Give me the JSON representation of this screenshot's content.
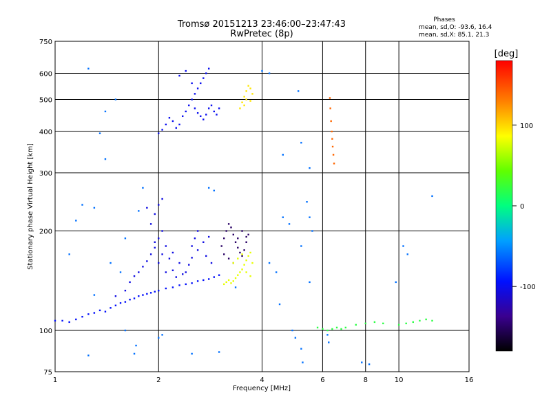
{
  "chart_data": {
    "type": "scatter",
    "title": "Tromsø 20151213 23:46:00–23:47:43",
    "subtitle": "RwPretec (8p)",
    "xlabel": "Frequency [MHz]",
    "ylabel": "Stationary phase Virtual Height [km]",
    "x_scale": "log",
    "y_scale": "log",
    "xlim": [
      1,
      16
    ],
    "ylim": [
      75,
      750
    ],
    "x_ticks": [
      1,
      2,
      4,
      6,
      8,
      10,
      16
    ],
    "x_tick_labels": [
      "1",
      "2",
      "4",
      "6",
      "8",
      "10",
      "16"
    ],
    "y_ticks": [
      75,
      100,
      200,
      300,
      400,
      500,
      600,
      750
    ],
    "y_tick_labels": [
      "75",
      "100",
      "200",
      "300",
      "400",
      "500",
      "600",
      "750"
    ],
    "grid": true,
    "colorbar": {
      "label": "[deg]",
      "min": -180,
      "max": 180,
      "ticks": [
        100,
        0,
        -100
      ],
      "tick_labels": [
        "100",
        "0",
        "-100"
      ]
    },
    "legend": {
      "title": "Phases",
      "line_o": "mean, sd,O: -93.6, 16.4",
      "line_x": "mean, sd,X: 85.1, 21.3"
    },
    "color_value": "phase [deg]",
    "clusters": [
      {
        "points": [
          [
            1.0,
            107
          ],
          [
            1.05,
            107
          ],
          [
            1.1,
            106
          ],
          [
            1.15,
            108
          ],
          [
            1.2,
            110
          ],
          [
            1.25,
            112
          ],
          [
            1.3,
            113
          ],
          [
            1.35,
            115
          ],
          [
            1.4,
            114
          ],
          [
            1.45,
            117
          ],
          [
            1.5,
            119
          ],
          [
            1.55,
            121
          ],
          [
            1.6,
            122
          ],
          [
            1.65,
            124
          ],
          [
            1.7,
            125
          ],
          [
            1.75,
            127
          ],
          [
            1.8,
            128
          ],
          [
            1.85,
            129
          ],
          [
            1.9,
            130
          ],
          [
            1.95,
            131
          ],
          [
            2.0,
            132
          ],
          [
            2.1,
            134
          ],
          [
            2.2,
            135
          ],
          [
            2.3,
            137
          ],
          [
            2.4,
            138
          ],
          [
            2.5,
            139
          ],
          [
            2.6,
            141
          ],
          [
            2.7,
            142
          ],
          [
            2.8,
            143
          ],
          [
            2.9,
            145
          ],
          [
            3.0,
            147
          ]
        ],
        "phase": -95
      },
      {
        "points": [
          [
            1.5,
            127
          ],
          [
            1.6,
            132
          ],
          [
            1.65,
            140
          ],
          [
            1.7,
            146
          ],
          [
            1.75,
            150
          ],
          [
            1.8,
            156
          ],
          [
            1.85,
            162
          ],
          [
            1.9,
            170
          ],
          [
            1.95,
            178
          ],
          [
            2.0,
            190
          ],
          [
            2.05,
            200
          ],
          [
            2.1,
            180
          ],
          [
            2.15,
            165
          ],
          [
            2.2,
            152
          ],
          [
            2.25,
            145
          ],
          [
            1.9,
            210
          ],
          [
            1.95,
            225
          ],
          [
            2.0,
            240
          ],
          [
            2.05,
            250
          ],
          [
            1.85,
            235
          ],
          [
            2.0,
            160
          ],
          [
            2.1,
            150
          ],
          [
            2.05,
            170
          ],
          [
            1.95,
            185
          ],
          [
            2.2,
            172
          ],
          [
            2.3,
            160
          ],
          [
            2.4,
            150
          ],
          [
            2.5,
            166
          ],
          [
            2.6,
            175
          ],
          [
            2.7,
            185
          ],
          [
            2.8,
            192
          ],
          [
            2.5,
            180
          ],
          [
            2.55,
            190
          ],
          [
            2.6,
            200
          ],
          [
            2.45,
            158
          ],
          [
            2.35,
            148
          ],
          [
            2.75,
            168
          ],
          [
            2.85,
            160
          ]
        ],
        "phase": -105
      },
      {
        "points": [
          [
            2.0,
            395
          ],
          [
            2.05,
            405
          ],
          [
            2.1,
            420
          ],
          [
            2.15,
            440
          ],
          [
            2.2,
            430
          ],
          [
            2.25,
            410
          ],
          [
            2.3,
            420
          ],
          [
            2.35,
            445
          ],
          [
            2.4,
            460
          ],
          [
            2.45,
            480
          ],
          [
            2.5,
            500
          ],
          [
            2.55,
            520
          ],
          [
            2.6,
            540
          ],
          [
            2.65,
            560
          ],
          [
            2.7,
            580
          ],
          [
            2.75,
            600
          ],
          [
            2.8,
            620
          ],
          [
            2.3,
            590
          ],
          [
            2.4,
            610
          ],
          [
            2.5,
            560
          ],
          [
            2.55,
            470
          ],
          [
            2.6,
            455
          ],
          [
            2.65,
            445
          ],
          [
            2.7,
            435
          ],
          [
            2.75,
            450
          ],
          [
            2.8,
            470
          ],
          [
            2.85,
            480
          ],
          [
            2.9,
            460
          ],
          [
            2.95,
            450
          ],
          [
            3.0,
            470
          ]
        ],
        "phase": -100
      },
      {
        "points": [
          [
            3.05,
            180
          ],
          [
            3.1,
            190
          ],
          [
            3.15,
            200
          ],
          [
            3.2,
            210
          ],
          [
            3.25,
            205
          ],
          [
            3.3,
            195
          ],
          [
            3.35,
            185
          ],
          [
            3.4,
            178
          ],
          [
            3.45,
            172
          ],
          [
            3.5,
            168
          ],
          [
            3.55,
            175
          ],
          [
            3.6,
            185
          ],
          [
            3.65,
            195
          ],
          [
            3.1,
            170
          ],
          [
            3.2,
            165
          ],
          [
            3.3,
            160
          ],
          [
            3.4,
            190
          ],
          [
            3.5,
            200
          ],
          [
            3.6,
            192
          ]
        ],
        "phase": -150
      },
      {
        "points": [
          [
            3.1,
            138
          ],
          [
            3.15,
            140
          ],
          [
            3.2,
            142
          ],
          [
            3.25,
            139
          ],
          [
            3.3,
            141
          ],
          [
            3.35,
            144
          ],
          [
            3.4,
            147
          ],
          [
            3.45,
            150
          ],
          [
            3.5,
            153
          ],
          [
            3.55,
            158
          ],
          [
            3.6,
            163
          ],
          [
            3.65,
            168
          ],
          [
            3.7,
            172
          ],
          [
            3.75,
            160
          ],
          [
            3.4,
            165
          ],
          [
            3.5,
            170
          ],
          [
            3.3,
            160
          ],
          [
            3.6,
            150
          ],
          [
            3.7,
            146
          ]
        ],
        "phase": 80
      },
      {
        "points": [
          [
            3.45,
            470
          ],
          [
            3.5,
            490
          ],
          [
            3.55,
            510
          ],
          [
            3.6,
            530
          ],
          [
            3.65,
            550
          ],
          [
            3.7,
            540
          ],
          [
            3.75,
            520
          ],
          [
            3.6,
            500
          ],
          [
            3.55,
            480
          ],
          [
            3.7,
            495
          ]
        ],
        "phase": 95
      },
      {
        "points": [
          [
            6.3,
            505
          ],
          [
            6.32,
            470
          ],
          [
            6.35,
            430
          ],
          [
            6.38,
            400
          ],
          [
            6.4,
            380
          ],
          [
            6.42,
            360
          ],
          [
            6.45,
            340
          ],
          [
            6.48,
            320
          ]
        ],
        "phase": 140
      },
      {
        "points": [
          [
            5.8,
            102
          ],
          [
            6.0,
            101
          ],
          [
            6.2,
            100
          ],
          [
            6.4,
            101
          ],
          [
            6.6,
            102
          ],
          [
            6.8,
            101
          ],
          [
            7.0,
            102
          ],
          [
            7.5,
            104
          ],
          [
            8.0,
            105
          ],
          [
            8.5,
            106
          ],
          [
            9.0,
            105
          ],
          [
            10.0,
            104
          ],
          [
            10.5,
            105
          ],
          [
            11.0,
            106
          ],
          [
            11.5,
            107
          ],
          [
            12.0,
            108
          ],
          [
            12.5,
            107
          ]
        ],
        "phase": 20
      },
      {
        "points": [
          [
            1.25,
            620
          ],
          [
            1.5,
            500
          ],
          [
            1.4,
            460
          ],
          [
            1.35,
            395
          ],
          [
            1.4,
            330
          ],
          [
            1.2,
            240
          ],
          [
            1.3,
            235
          ],
          [
            1.15,
            215
          ],
          [
            1.1,
            170
          ],
          [
            1.6,
            190
          ],
          [
            1.45,
            160
          ],
          [
            1.55,
            150
          ],
          [
            1.3,
            128
          ],
          [
            1.8,
            270
          ],
          [
            1.75,
            230
          ],
          [
            2.8,
            270
          ],
          [
            2.9,
            265
          ],
          [
            4.2,
            600
          ],
          [
            4.0,
            610
          ],
          [
            5.1,
            530
          ],
          [
            5.2,
            370
          ],
          [
            5.4,
            245
          ],
          [
            5.5,
            220
          ],
          [
            5.6,
            200
          ],
          [
            5.2,
            180
          ],
          [
            4.6,
            220
          ],
          [
            4.8,
            210
          ],
          [
            4.2,
            160
          ],
          [
            4.4,
            150
          ],
          [
            4.5,
            120
          ],
          [
            5.5,
            140
          ],
          [
            4.9,
            100
          ],
          [
            5.0,
            95
          ],
          [
            5.2,
            88
          ],
          [
            5.25,
            80
          ],
          [
            6.2,
            97
          ],
          [
            6.25,
            92
          ],
          [
            7.8,
            80
          ],
          [
            8.2,
            79
          ],
          [
            10.3,
            180
          ],
          [
            9.8,
            140
          ],
          [
            10.6,
            170
          ],
          [
            12.5,
            255
          ],
          [
            1.7,
            85
          ],
          [
            1.72,
            90
          ],
          [
            1.6,
            100
          ],
          [
            1.25,
            84
          ],
          [
            2.0,
            95
          ],
          [
            2.05,
            97
          ],
          [
            2.5,
            85
          ],
          [
            3.0,
            86
          ],
          [
            3.35,
            135
          ],
          [
            4.6,
            340
          ],
          [
            5.5,
            310
          ]
        ],
        "phase": -60
      }
    ]
  }
}
